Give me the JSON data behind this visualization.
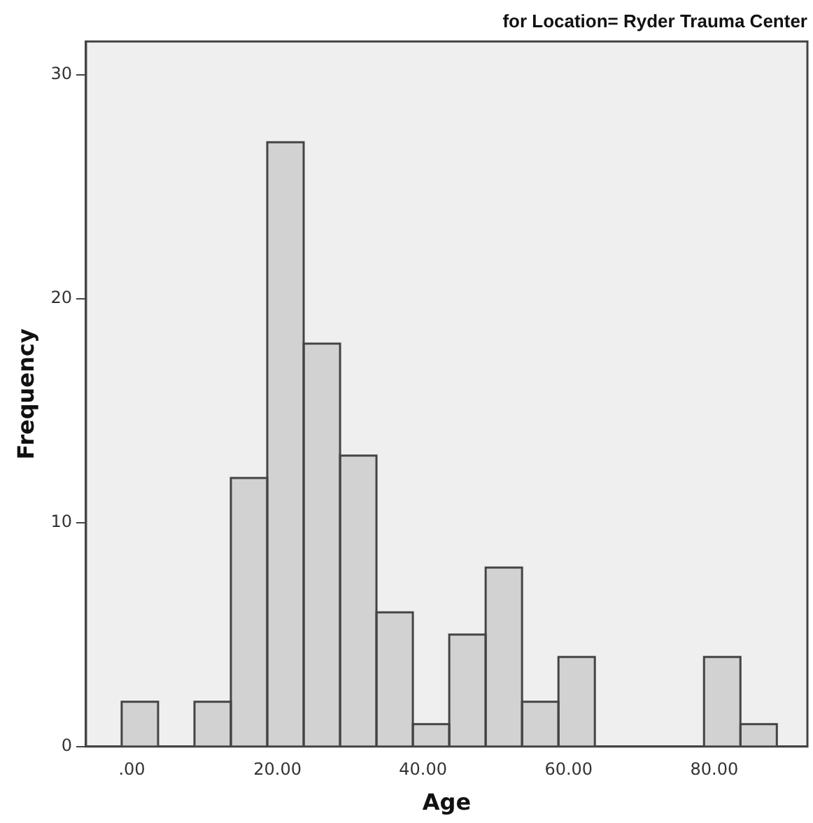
{
  "chart_data": {
    "type": "histogram",
    "title": "for Location= Ryder Trauma Center",
    "xlabel": "Age",
    "ylabel": "Frequency",
    "bins": [
      -1.4,
      3.6,
      8.6,
      13.6,
      18.6,
      23.6,
      28.6,
      33.6,
      38.6,
      43.6,
      48.6,
      53.6,
      58.6,
      63.6,
      68.6,
      73.6,
      78.6,
      83.6,
      88.6
    ],
    "values": [
      2,
      0,
      2,
      12,
      27,
      18,
      13,
      6,
      1,
      5,
      8,
      2,
      4,
      0,
      0,
      0,
      4,
      1
    ],
    "color": "#d2d2d2",
    "xlim": [
      -6.3,
      92.8
    ],
    "xticks": [
      {
        "value": 0,
        "label": ".00"
      },
      {
        "value": 20,
        "label": "20.00"
      },
      {
        "value": 40,
        "label": "40.00"
      },
      {
        "value": 60,
        "label": "60.00"
      },
      {
        "value": 80,
        "label": "80.00"
      }
    ],
    "ylim": [
      0,
      31.5
    ],
    "yticks": [
      0,
      10,
      20,
      30
    ],
    "grid": false,
    "legend": false
  }
}
